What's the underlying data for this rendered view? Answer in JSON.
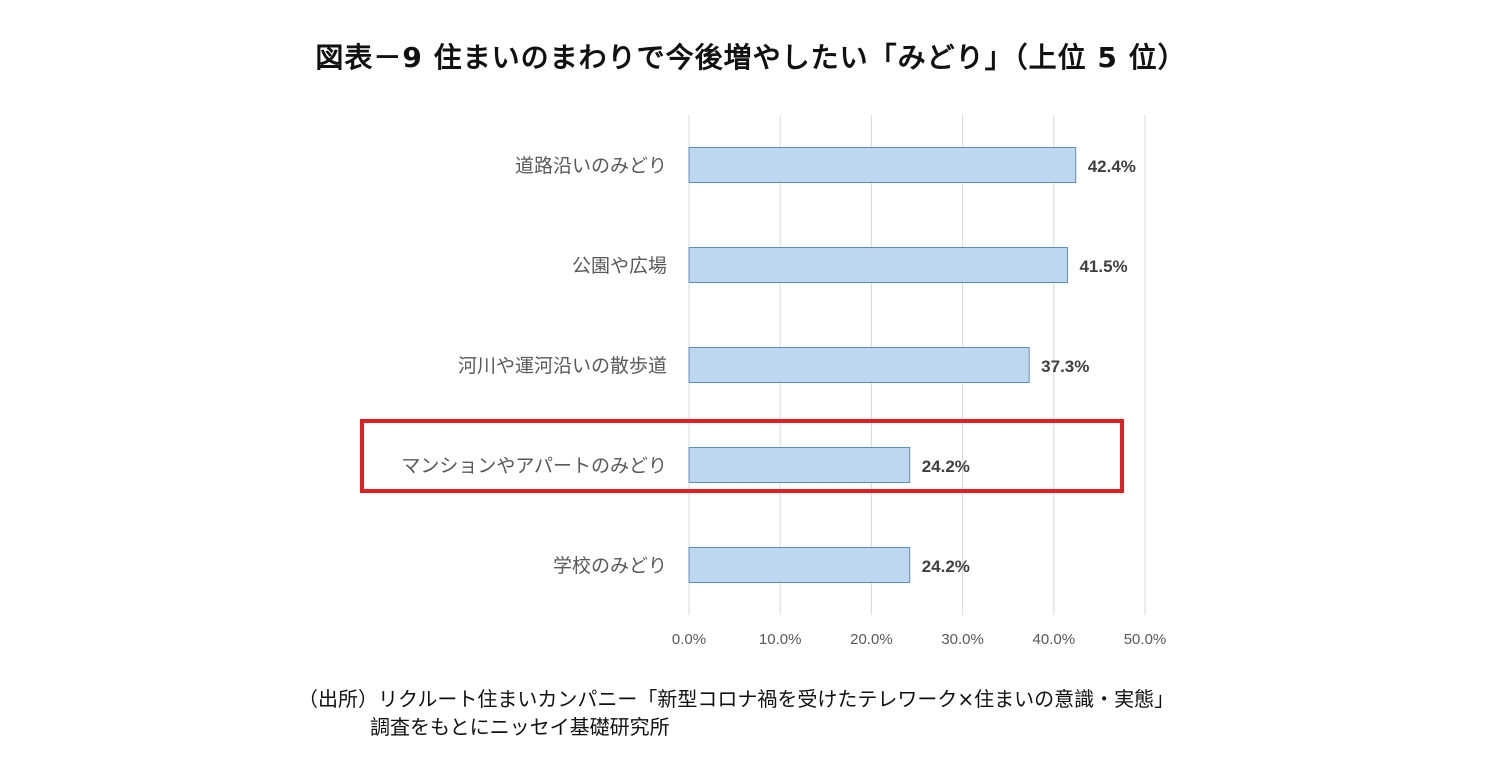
{
  "chart_data": {
    "type": "bar",
    "orientation": "horizontal",
    "title": "図表－9 住まいのまわりで今後増やしたい「みどり」（上位 5 位）",
    "categories": [
      "道路沿いのみどり",
      "公園や広場",
      "河川や運河沿いの散歩道",
      "マンションやアパートのみどり",
      "学校のみどり"
    ],
    "values": [
      42.4,
      41.5,
      37.3,
      24.2,
      24.2
    ],
    "value_labels": [
      "42.4%",
      "41.5%",
      "37.3%",
      "24.2%",
      "24.2%"
    ],
    "x_ticks": [
      "0.0%",
      "10.0%",
      "20.0%",
      "30.0%",
      "40.0%",
      "50.0%"
    ],
    "xlim": [
      0,
      50
    ],
    "grid": "vertical",
    "highlighted_category": "マンションやアパートのみどり",
    "colors": {
      "bar_fill": "#bdd7ee",
      "bar_stroke": "#5b8fc0",
      "highlight_box": "#e02020",
      "grid": "#d9d9d9"
    }
  },
  "source": {
    "line1": "（出所）リクルート住まいカンパニー「新型コロナ禍を受けたテレワーク×住まいの意識・実態」",
    "line2": "調査をもとにニッセイ基礎研究所"
  }
}
